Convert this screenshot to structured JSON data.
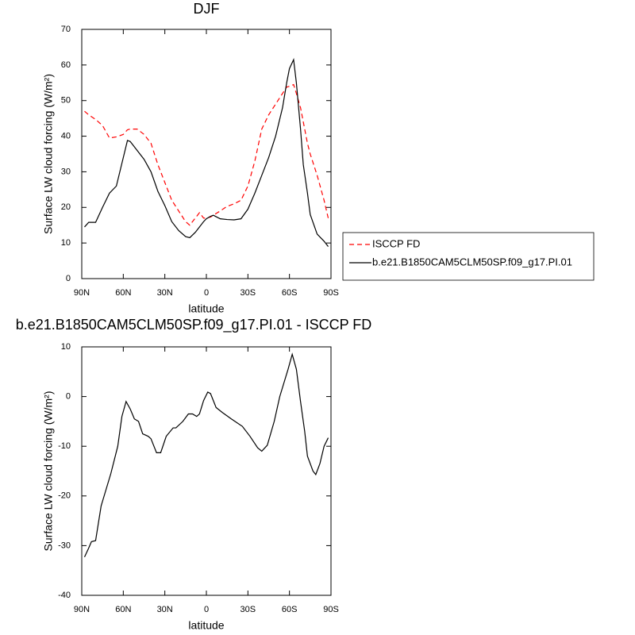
{
  "chart_data": [
    {
      "type": "line",
      "title": "DJF",
      "xlabel": "latitude",
      "ylabel": "Surface LW cloud forcing (W/m²)",
      "x": [
        88,
        85,
        80,
        75,
        70,
        65,
        60,
        57,
        55,
        50,
        45,
        40,
        35,
        30,
        25,
        20,
        15,
        12,
        8,
        5,
        2,
        0,
        -3,
        -5,
        -10,
        -15,
        -20,
        -25,
        -30,
        -35,
        -40,
        -45,
        -50,
        -55,
        -58,
        -60,
        -63,
        -65,
        -68,
        -70,
        -73,
        -75,
        -80,
        -85,
        -88
      ],
      "series": [
        {
          "name": "ISCCP FD",
          "color": "#ff0000",
          "dashed": true,
          "values": [
            47,
            46,
            44.7,
            43,
            39.5,
            39.8,
            40.5,
            41.8,
            42,
            42,
            40.5,
            38,
            32,
            27,
            22,
            19,
            16,
            15,
            17,
            18.5,
            17,
            17,
            17.3,
            17.8,
            19,
            20.3,
            21,
            22,
            26,
            33,
            42,
            46,
            49,
            52,
            53.8,
            54,
            54.5,
            52,
            48,
            44,
            38,
            35,
            29,
            22,
            17
          ]
        },
        {
          "name": "b.e21.B1850CAM5CLM50SP.f09_g17.PI.01",
          "color": "#000000",
          "dashed": false,
          "values": [
            14.5,
            15.8,
            15.8,
            20,
            24,
            26,
            34,
            38.8,
            38.5,
            36,
            33.5,
            30,
            24.5,
            20.5,
            16,
            13.5,
            11.8,
            11.5,
            13,
            14.5,
            16,
            16.8,
            17.5,
            17.8,
            16.8,
            16.6,
            16.5,
            16.8,
            19.5,
            24,
            29,
            34,
            40,
            48,
            55,
            59,
            61.5,
            55,
            42,
            32,
            24,
            18,
            12.5,
            10.5,
            9
          ]
        }
      ],
      "xlim": [
        90,
        -90
      ],
      "xticks": [
        {
          "value": 90,
          "label": "90N"
        },
        {
          "value": 60,
          "label": "60N"
        },
        {
          "value": 30,
          "label": "30N"
        },
        0,
        {
          "value": -30,
          "label": "30S"
        },
        {
          "value": -60,
          "label": "60S"
        },
        {
          "value": -90,
          "label": "90S"
        }
      ],
      "ylim": [
        0,
        70
      ],
      "yticks": [
        0,
        10,
        20,
        30,
        40,
        50,
        60,
        70
      ],
      "legend": "right"
    },
    {
      "type": "line",
      "title": "b.e21.B1850CAM5CLM50SP.f09_g17.PI.01 - ISCCP FD",
      "xlabel": "latitude",
      "ylabel": "Surface LW cloud forcing (W/m²)",
      "x": [
        88,
        85,
        83,
        80,
        76,
        69,
        64,
        61,
        58,
        55,
        52,
        49,
        46,
        42,
        40,
        36,
        33,
        29,
        24,
        22,
        17,
        13,
        10,
        7,
        5,
        2,
        -1,
        -3,
        -7,
        -11.5,
        -18,
        -26,
        -31.5,
        -37,
        -40,
        -44,
        -49,
        -53,
        -59,
        -62,
        -65,
        -68,
        -71,
        -73,
        -77,
        -79,
        -82,
        -85,
        -88
      ],
      "values": [
        -32.3,
        -30.5,
        -29.2,
        -29,
        -22,
        -15.5,
        -10,
        -4,
        -1,
        -2.5,
        -4.5,
        -5,
        -7.5,
        -8,
        -8.5,
        -11.3,
        -11.3,
        -8,
        -6.3,
        -6.3,
        -5,
        -3.5,
        -3.5,
        -4,
        -3.5,
        -0.8,
        0.9,
        0.6,
        -2.2,
        -3.2,
        -4.5,
        -6,
        -8,
        -10.3,
        -11,
        -9.8,
        -5,
        0,
        5.5,
        8.5,
        5.5,
        -1,
        -7,
        -12,
        -15,
        -15.7,
        -13.5,
        -10,
        -8.3
      ],
      "color": "#000000",
      "xlim": [
        90,
        -90
      ],
      "xticks": [
        {
          "value": 90,
          "label": "90N"
        },
        {
          "value": 60,
          "label": "60N"
        },
        {
          "value": 30,
          "label": "30N"
        },
        0,
        {
          "value": -30,
          "label": "30S"
        },
        {
          "value": -60,
          "label": "60S"
        },
        {
          "value": -90,
          "label": "90S"
        }
      ],
      "ylim": [
        -40,
        10
      ],
      "yticks": [
        -40,
        -30,
        -20,
        -10,
        0,
        10
      ]
    }
  ]
}
